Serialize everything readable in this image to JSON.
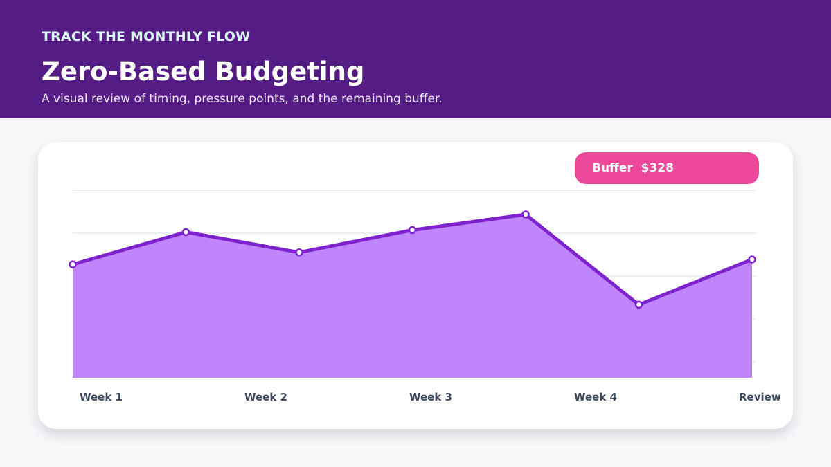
{
  "header": {
    "eyebrow": "TRACK THE MONTHLY FLOW",
    "title": "Zero-Based Budgeting",
    "subtitle": "A visual review of timing, pressure points, and the remaining buffer."
  },
  "badge": {
    "label": "Buffer",
    "value": "$328"
  },
  "colors": {
    "header_bg": "#561c85",
    "area_fill": "#c084fc",
    "line": "#7e22ce",
    "badge": "#ec4899"
  },
  "chart_data": {
    "type": "area",
    "title": "",
    "xlabel": "",
    "ylabel": "",
    "x_tick_labels": [
      "Week 1",
      "Week 2",
      "Week 3",
      "Week 4",
      "Review"
    ],
    "grid": true,
    "ylim": [
      0,
      100
    ],
    "series": [
      {
        "values": [
          56.8,
          75.6,
          63.8,
          76.8,
          85.9,
          33.3,
          59.7
        ]
      }
    ]
  }
}
